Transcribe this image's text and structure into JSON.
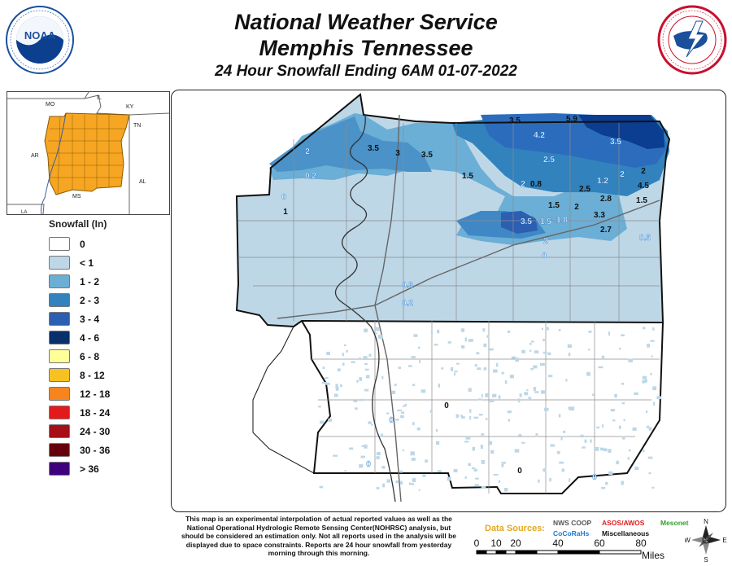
{
  "header": {
    "line1": "National Weather Service",
    "line2": "Memphis Tennessee",
    "line3": "24 Hour Snowfall Ending 6AM 01-07-2022"
  },
  "logos": {
    "noaa": {
      "text": "NOAA",
      "ring_text": "NATIONAL OCEANIC AND ATMOSPHERIC ADMINISTRATION · U.S. DEPARTMENT OF COMMERCE"
    },
    "nws": {
      "ring_text": "NATIONAL WEATHER SERVICE · U.S. DEPARTMENT OF COMMERCE"
    }
  },
  "inset": {
    "states": [
      "MO",
      "IL",
      "KY",
      "TN",
      "AR",
      "MS",
      "AL",
      "LA"
    ],
    "highlight_color": "#f6a623"
  },
  "legend": {
    "title": "Snowfall (In)",
    "items": [
      {
        "label": "0",
        "color": "#ffffff"
      },
      {
        "label": "< 1",
        "color": "#bdd7e7"
      },
      {
        "label": "1 - 2",
        "color": "#6baed6"
      },
      {
        "label": "2 - 3",
        "color": "#3182bd"
      },
      {
        "label": "3 - 4",
        "color": "#2c5fb0"
      },
      {
        "label": "4 - 6",
        "color": "#08306b"
      },
      {
        "label": "6 - 8",
        "color": "#ffff99"
      },
      {
        "label": "8 - 12",
        "color": "#f6c223"
      },
      {
        "label": "12 - 18",
        "color": "#f6851f"
      },
      {
        "label": "18 - 24",
        "color": "#e31a1c"
      },
      {
        "label": "24 - 30",
        "color": "#a50f15"
      },
      {
        "label": "30 - 36",
        "color": "#67000d"
      },
      {
        "label": "> 36",
        "color": "#3f007d"
      }
    ]
  },
  "observations": [
    {
      "v": "3.5",
      "src": "coop"
    },
    {
      "v": "5.9",
      "src": "coop"
    },
    {
      "v": "4.2",
      "src": "cocorahs"
    },
    {
      "v": "3.5",
      "src": "cocorahs"
    },
    {
      "v": "3.5",
      "src": "coop"
    },
    {
      "v": "3",
      "src": "coop"
    },
    {
      "v": "3.5",
      "src": "coop"
    },
    {
      "v": "2",
      "src": "cocorahs"
    },
    {
      "v": "0.2",
      "src": "cocorahs"
    },
    {
      "v": "2.5",
      "src": "cocorahs"
    },
    {
      "v": "1.5",
      "src": "coop"
    },
    {
      "v": "2",
      "src": "cocorahs"
    },
    {
      "v": "0.8",
      "src": "coop"
    },
    {
      "v": "1.2",
      "src": "cocorahs"
    },
    {
      "v": "2",
      "src": "cocorahs"
    },
    {
      "v": "2",
      "src": "coop"
    },
    {
      "v": "2.5",
      "src": "coop"
    },
    {
      "v": "4.5",
      "src": "coop"
    },
    {
      "v": "0",
      "src": "cocorahs"
    },
    {
      "v": "1",
      "src": "coop"
    },
    {
      "v": "1.5",
      "src": "coop"
    },
    {
      "v": "2",
      "src": "coop"
    },
    {
      "v": "2.8",
      "src": "coop"
    },
    {
      "v": "1.5",
      "src": "coop"
    },
    {
      "v": "3.5",
      "src": "cocorahs"
    },
    {
      "v": "1.5",
      "src": "cocorahs"
    },
    {
      "v": "1.8",
      "src": "cocorahs"
    },
    {
      "v": "3.3",
      "src": "coop"
    },
    {
      "v": "2.7",
      "src": "coop"
    },
    {
      "v": "2",
      "src": "cocorahs"
    },
    {
      "v": "0.5",
      "src": "cocorahs"
    },
    {
      "v": "0",
      "src": "cocorahs"
    },
    {
      "v": "0.3",
      "src": "cocorahs"
    },
    {
      "v": "0.2",
      "src": "cocorahs"
    },
    {
      "v": "0",
      "src": "coop"
    },
    {
      "v": "0",
      "src": "cocorahs"
    },
    {
      "v": "0",
      "src": "cocorahs"
    },
    {
      "v": "0",
      "src": "coop"
    },
    {
      "v": "0",
      "src": "cocorahs"
    }
  ],
  "disclaimer": "This map is an experimental interpolation of actual reported values as well as the National Operational Hydrologic Remote Sensing Center(NOHRSC) analysis, but should be considered an estimation only. Not all reports used in the analysis will be displayed due to space constraints. Reports are 24 hour snowfall from yesterday morning through this morning.",
  "sources": {
    "label": "Data Sources:",
    "coop": "NWS COOP",
    "asos": "ASOS/AWOS",
    "mesonet": "Mesonet",
    "cocorahs": "CoCoRaHs",
    "misc": "Miscellaneous",
    "colors": {
      "coop": "#555555",
      "asos": "#e31a1c",
      "mesonet": "#33a02c",
      "cocorahs": "#1f78d4",
      "misc": "#111111"
    }
  },
  "scale": {
    "ticks": [
      "0",
      "10",
      "20",
      "40",
      "60",
      "80"
    ],
    "unit": "Miles"
  },
  "compass": {
    "n": "N",
    "s": "S",
    "e": "E",
    "w": "W"
  }
}
